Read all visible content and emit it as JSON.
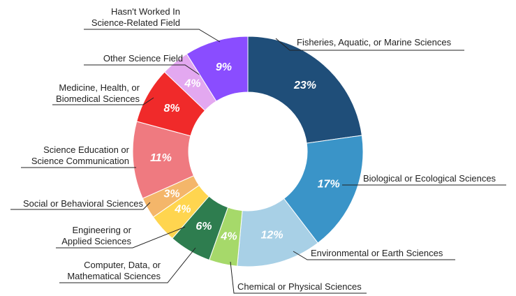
{
  "chart_data": {
    "type": "donut",
    "categories": [
      "Fisheries, Aquatic, or Marine Sciences",
      "Biological or Ecological Sciences",
      "Environmental or Earth Sciences",
      "Chemical or Physical Sciences",
      "Computer, Data, or Mathematical Sciences",
      "Engineering or Applied Sciences",
      "Social or Behavioral Sciences",
      "Science Education or Science Communication",
      "Medicine, Health, or Biomedical Sciences",
      "Other Science Field",
      "Hasn't Worked In Science-Related Field"
    ],
    "values": [
      23,
      17,
      12,
      4,
      6,
      4,
      3,
      11,
      8,
      4,
      9
    ],
    "value_labels": [
      "23%",
      "17%",
      "12%",
      "4%",
      "6%",
      "4%",
      "3%",
      "11%",
      "8%",
      "4%",
      "9%"
    ],
    "colors": [
      "#1f4e79",
      "#3a94c8",
      "#a8d0e6",
      "#a6d96a",
      "#2e7d4f",
      "#ffd54f",
      "#f4b66a",
      "#ef7a80",
      "#f02a2a",
      "#e3a8f0",
      "#8a4dff"
    ]
  }
}
